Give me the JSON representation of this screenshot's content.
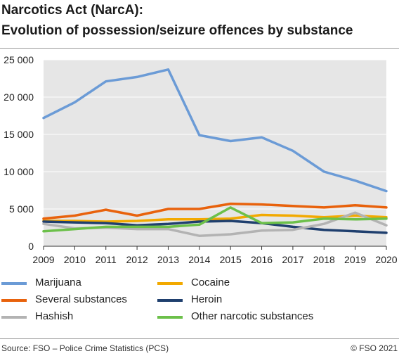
{
  "title_line1": "Narcotics Act (NarcA):",
  "title_line2": "Evolution of possession/seizure offences by substance",
  "source": "Source: FSO – Police Crime Statistics (PCS)",
  "copyright": "© FSO 2021",
  "chart_data": {
    "type": "line",
    "x": [
      2009,
      2010,
      2011,
      2012,
      2013,
      2014,
      2015,
      2016,
      2017,
      2018,
      2019,
      2020
    ],
    "x_tick_labels": [
      "2009",
      "2010",
      "2011",
      "2012",
      "2013",
      "2014",
      "2015",
      "2016",
      "2017",
      "2018",
      "2019",
      "2020"
    ],
    "ylim": [
      0,
      25000
    ],
    "y_ticks": [
      0,
      5000,
      10000,
      15000,
      20000,
      25000
    ],
    "y_tick_labels": [
      "0",
      "5 000",
      "10 000",
      "15 000",
      "20 000",
      "25 000"
    ],
    "grid": true,
    "legend_position": "bottom",
    "series": [
      {
        "name": "Marijuana",
        "color": "#6b9bd6",
        "values": [
          17200,
          19300,
          22100,
          22700,
          23700,
          14900,
          14100,
          14600,
          12800,
          10000,
          8800,
          7400
        ]
      },
      {
        "name": "Cocaine",
        "color": "#f2a900",
        "values": [
          3400,
          3400,
          3300,
          3400,
          3600,
          3600,
          3700,
          4200,
          4100,
          3900,
          4100,
          3900
        ]
      },
      {
        "name": "Several substances",
        "color": "#e8620c",
        "values": [
          3700,
          4100,
          4900,
          4100,
          5000,
          5000,
          5700,
          5600,
          5400,
          5200,
          5500,
          5200
        ]
      },
      {
        "name": "Heroin",
        "color": "#1f3f6e",
        "values": [
          3300,
          3200,
          3100,
          2800,
          3000,
          3300,
          3400,
          3100,
          2600,
          2200,
          2000,
          1800
        ]
      },
      {
        "name": "Hashish",
        "color": "#b3b3b3",
        "values": [
          3000,
          2400,
          2500,
          2300,
          2300,
          1400,
          1600,
          2100,
          2200,
          3000,
          4500,
          2800
        ]
      },
      {
        "name": "Other narcotic substances",
        "color": "#6cc04a",
        "values": [
          2000,
          2300,
          2600,
          2600,
          2600,
          2900,
          5200,
          3100,
          3200,
          3700,
          3600,
          3700
        ]
      }
    ]
  }
}
